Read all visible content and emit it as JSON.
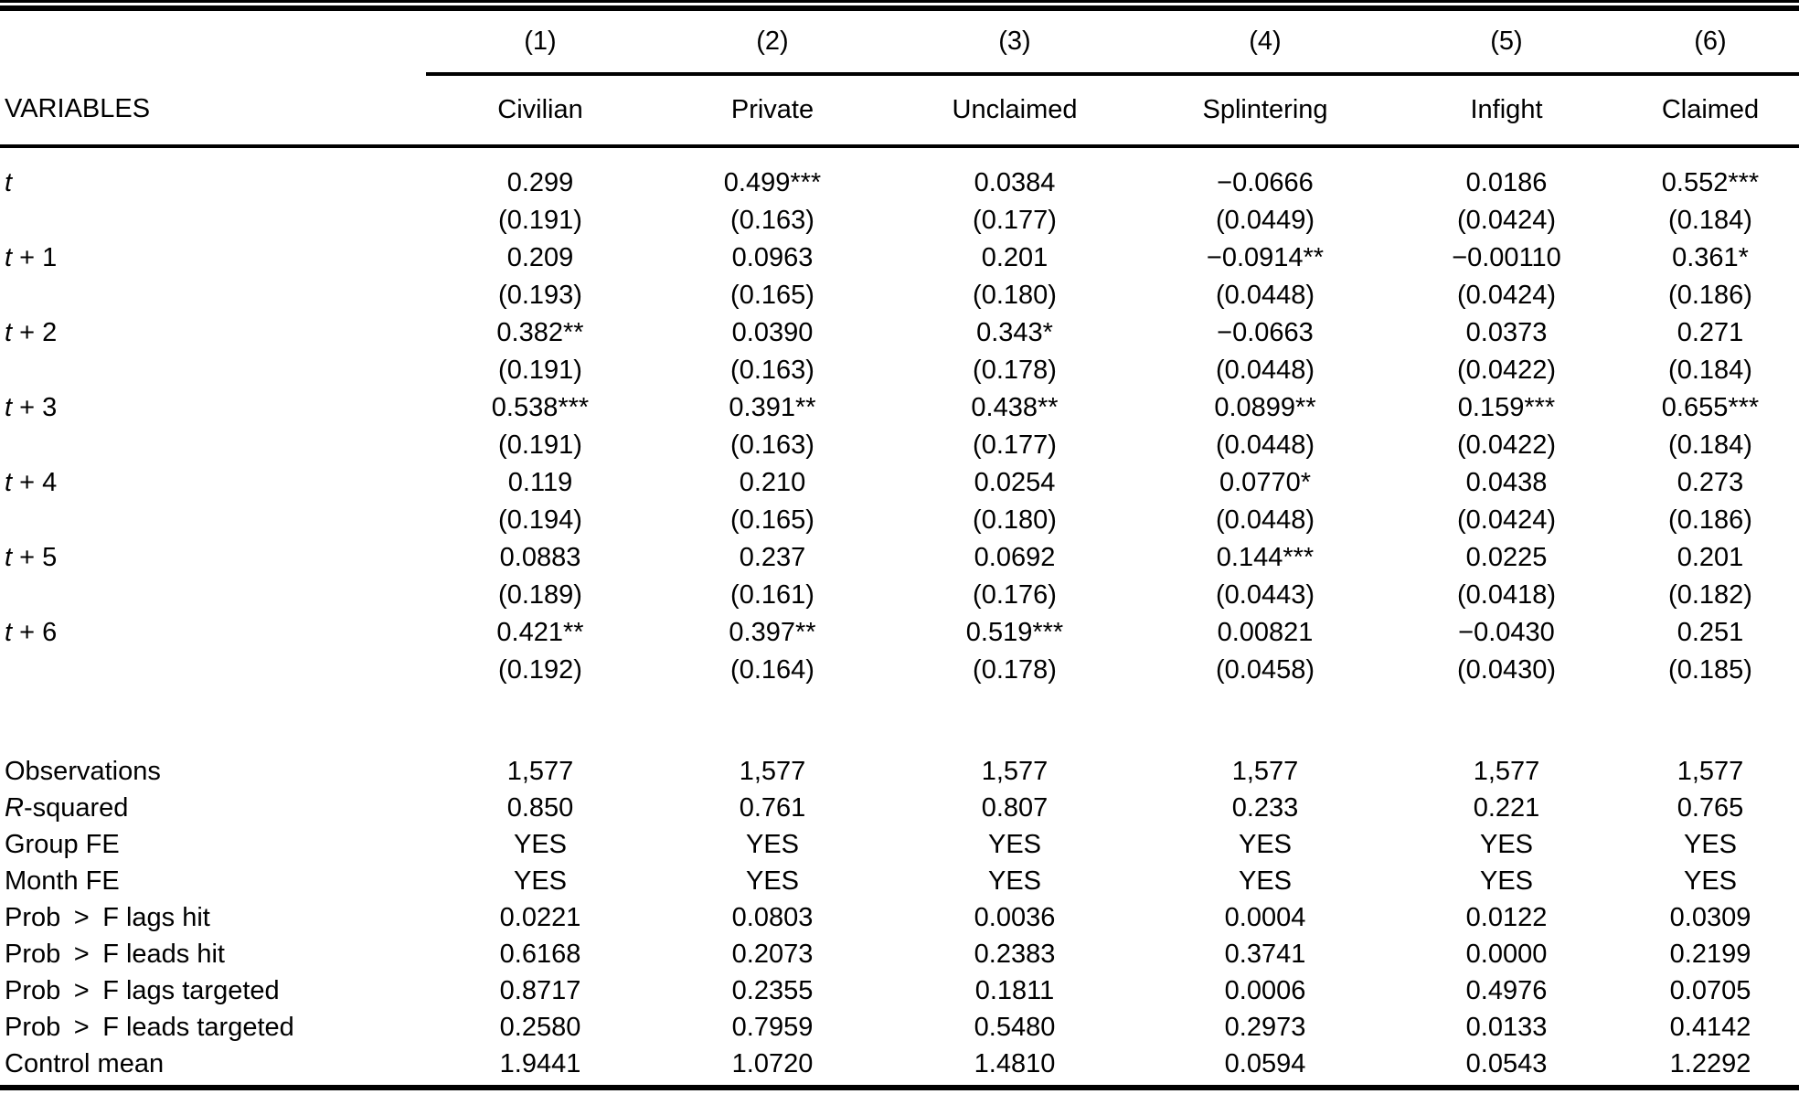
{
  "table": {
    "header": {
      "variables_label": "VARIABLES",
      "column_numbers": [
        "(1)",
        "(2)",
        "(3)",
        "(4)",
        "(5)",
        "(6)"
      ],
      "column_names": [
        "Civilian",
        "Private",
        "Unclaimed",
        "Splintering",
        "Infight",
        "Claimed"
      ]
    },
    "coefficient_rows": [
      {
        "label_italic": "t",
        "label_rest": "",
        "coefficients": [
          "0.299",
          "0.499***",
          "0.0384",
          "−0.0666",
          "0.0186",
          "0.552***"
        ],
        "std_errors": [
          "(0.191)",
          "(0.163)",
          "(0.177)",
          "(0.0449)",
          "(0.0424)",
          "(0.184)"
        ]
      },
      {
        "label_italic": "t",
        "label_rest": " + 1",
        "coefficients": [
          "0.209",
          "0.0963",
          "0.201",
          "−0.0914**",
          "−0.00110",
          "0.361*"
        ],
        "std_errors": [
          "(0.193)",
          "(0.165)",
          "(0.180)",
          "(0.0448)",
          "(0.0424)",
          "(0.186)"
        ]
      },
      {
        "label_italic": "t",
        "label_rest": " + 2",
        "coefficients": [
          "0.382**",
          "0.0390",
          "0.343*",
          "−0.0663",
          "0.0373",
          "0.271"
        ],
        "std_errors": [
          "(0.191)",
          "(0.163)",
          "(0.178)",
          "(0.0448)",
          "(0.0422)",
          "(0.184)"
        ]
      },
      {
        "label_italic": "t",
        "label_rest": " + 3",
        "coefficients": [
          "0.538***",
          "0.391**",
          "0.438**",
          "0.0899**",
          "0.159***",
          "0.655***"
        ],
        "std_errors": [
          "(0.191)",
          "(0.163)",
          "(0.177)",
          "(0.0448)",
          "(0.0422)",
          "(0.184)"
        ]
      },
      {
        "label_italic": "t",
        "label_rest": " + 4",
        "coefficients": [
          "0.119",
          "0.210",
          "0.0254",
          "0.0770*",
          "0.0438",
          "0.273"
        ],
        "std_errors": [
          "(0.194)",
          "(0.165)",
          "(0.180)",
          "(0.0448)",
          "(0.0424)",
          "(0.186)"
        ]
      },
      {
        "label_italic": "t",
        "label_rest": " + 5",
        "coefficients": [
          "0.0883",
          "0.237",
          "0.0692",
          "0.144***",
          "0.0225",
          "0.201"
        ],
        "std_errors": [
          "(0.189)",
          "(0.161)",
          "(0.176)",
          "(0.0443)",
          "(0.0418)",
          "(0.182)"
        ]
      },
      {
        "label_italic": "t",
        "label_rest": " + 6",
        "coefficients": [
          "0.421**",
          "0.397**",
          "0.519***",
          "0.00821",
          "−0.0430",
          "0.251"
        ],
        "std_errors": [
          "(0.192)",
          "(0.164)",
          "(0.178)",
          "(0.0458)",
          "(0.0430)",
          "(0.185)"
        ]
      }
    ],
    "stats_rows": [
      {
        "label_italic": "",
        "label_rest": "Observations",
        "values": [
          "1,577",
          "1,577",
          "1,577",
          "1,577",
          "1,577",
          "1,577"
        ]
      },
      {
        "label_italic": "R",
        "label_rest": "-squared",
        "values": [
          "0.850",
          "0.761",
          "0.807",
          "0.233",
          "0.221",
          "0.765"
        ]
      },
      {
        "label_italic": "",
        "label_rest": "Group FE",
        "values": [
          "YES",
          "YES",
          "YES",
          "YES",
          "YES",
          "YES"
        ]
      },
      {
        "label_italic": "",
        "label_rest": "Month FE",
        "values": [
          "YES",
          "YES",
          "YES",
          "YES",
          "YES",
          "YES"
        ]
      },
      {
        "label_italic": "",
        "label_rest": "Prob > F lags hit",
        "values": [
          "0.0221",
          "0.0803",
          "0.0036",
          "0.0004",
          "0.0122",
          "0.0309"
        ]
      },
      {
        "label_italic": "",
        "label_rest": "Prob > F leads hit",
        "values": [
          "0.6168",
          "0.2073",
          "0.2383",
          "0.3741",
          "0.0000",
          "0.2199"
        ]
      },
      {
        "label_italic": "",
        "label_rest": "Prob > F lags targeted",
        "values": [
          "0.8717",
          "0.2355",
          "0.1811",
          "0.0006",
          "0.4976",
          "0.0705"
        ]
      },
      {
        "label_italic": "",
        "label_rest": "Prob > F leads targeted",
        "values": [
          "0.2580",
          "0.7959",
          "0.5480",
          "0.2973",
          "0.0133",
          "0.4142"
        ]
      },
      {
        "label_italic": "",
        "label_rest": "Control mean",
        "values": [
          "1.9441",
          "1.0720",
          "1.4810",
          "0.0594",
          "0.0543",
          "1.2292"
        ]
      }
    ]
  }
}
